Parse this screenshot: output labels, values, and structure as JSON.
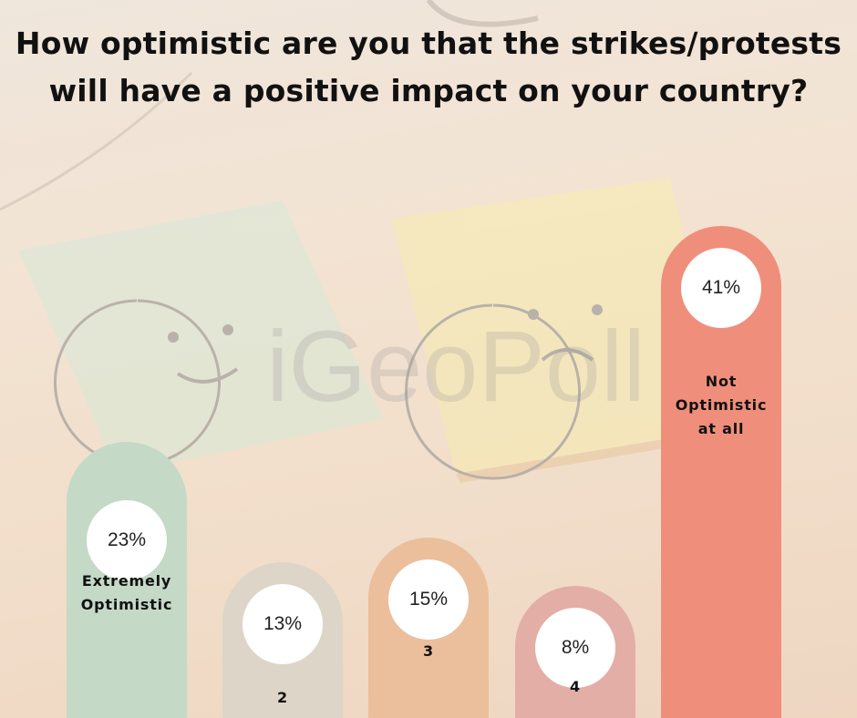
{
  "chart_data": {
    "type": "bar",
    "title_lines": [
      "How optimistic are you that the strikes/protests",
      "will have a positive impact on your country?"
    ],
    "categories": [
      "Extremely\nOptimistic",
      "2",
      "3",
      "4",
      "Not\nOptimistic\nat all"
    ],
    "values": [
      23,
      13,
      15,
      8,
      41
    ],
    "value_labels": [
      "23%",
      "13%",
      "15%",
      "8%",
      "41%"
    ],
    "unit": "%",
    "colors": [
      "#c4d9c6",
      "#ddd5c7",
      "#ebbf9c",
      "#e3aea6",
      "#ef8f7b"
    ]
  },
  "watermark": "iGeoPoll"
}
